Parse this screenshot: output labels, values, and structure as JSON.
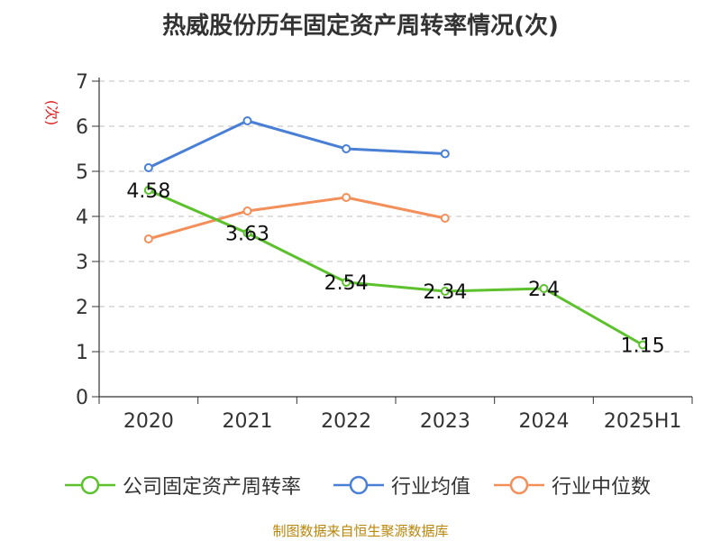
{
  "header": {
    "title": "热威股份历年固定资产周转率情况(次)"
  },
  "footer": {
    "source": "制图数据来自恒生聚源数据库"
  },
  "chart_data": {
    "type": "line",
    "title": "热威股份历年固定资产周转率情况(次)",
    "ylabel": "(次)",
    "xlabel": "",
    "categories": [
      "2020",
      "2021",
      "2022",
      "2023",
      "2024",
      "2025H1"
    ],
    "ylim": [
      0,
      7
    ],
    "yticks": [
      0,
      1,
      2,
      3,
      4,
      5,
      6,
      7
    ],
    "grid": true,
    "legend_position": "bottom",
    "series": [
      {
        "name": "公司固定资产周转率",
        "color": "#5cc12d",
        "values": [
          4.58,
          3.63,
          2.54,
          2.34,
          2.4,
          1.15
        ],
        "labels": [
          "4.58",
          "3.63",
          "2.54",
          "2.34",
          "2.4",
          "1.15"
        ]
      },
      {
        "name": "行业均值",
        "color": "#4a7fd6",
        "values": [
          5.08,
          6.12,
          5.5,
          5.39,
          null,
          null
        ]
      },
      {
        "name": "行业中位数",
        "color": "#f28f5a",
        "values": [
          3.5,
          4.12,
          4.42,
          3.96,
          null,
          null
        ]
      }
    ]
  }
}
